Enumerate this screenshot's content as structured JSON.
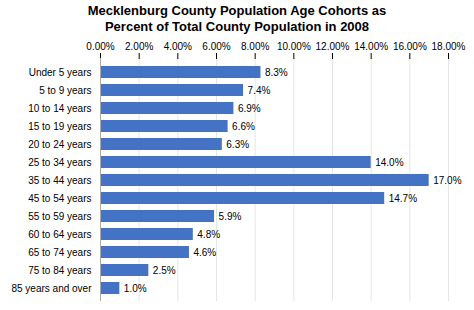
{
  "chart_data": {
    "type": "bar",
    "orientation": "horizontal",
    "title": "Mecklenburg County Population Age Cohorts as\nPercent of Total County Population in 2008",
    "categories": [
      "Under 5 years",
      "5 to 9 years",
      "10 to 14 years",
      "15 to 19 years",
      "20 to 24 years",
      "25 to 34 years",
      "35 to 44 years",
      "45 to 54 years",
      "55 to 59 years",
      "60 to 64 years",
      "65 to 74 years",
      "75 to 84 years",
      "85 years and over"
    ],
    "values": [
      8.3,
      7.4,
      6.9,
      6.6,
      6.3,
      14.0,
      17.0,
      14.7,
      5.9,
      4.8,
      4.6,
      2.5,
      1.0
    ],
    "value_labels": [
      "8.3%",
      "7.4%",
      "6.9%",
      "6.6%",
      "6.3%",
      "14.0%",
      "17.0%",
      "14.7%",
      "5.9%",
      "4.8%",
      "4.6%",
      "2.5%",
      "1.0%"
    ],
    "data_labels": true,
    "color": "#4472C4",
    "xlim": [
      0,
      18
    ],
    "xticks": [
      {
        "value": 0,
        "label": "0.00%"
      },
      {
        "value": 2,
        "label": "2.00%"
      },
      {
        "value": 4,
        "label": "4.00%"
      },
      {
        "value": 6,
        "label": "6.00%"
      },
      {
        "value": 8,
        "label": "8.00%"
      },
      {
        "value": 10,
        "label": "10.00%"
      },
      {
        "value": 12,
        "label": "12.00%"
      },
      {
        "value": 14,
        "label": "14.00%"
      },
      {
        "value": 16,
        "label": "16.00%"
      },
      {
        "value": 18,
        "label": "18.00%"
      }
    ],
    "grid": true
  }
}
